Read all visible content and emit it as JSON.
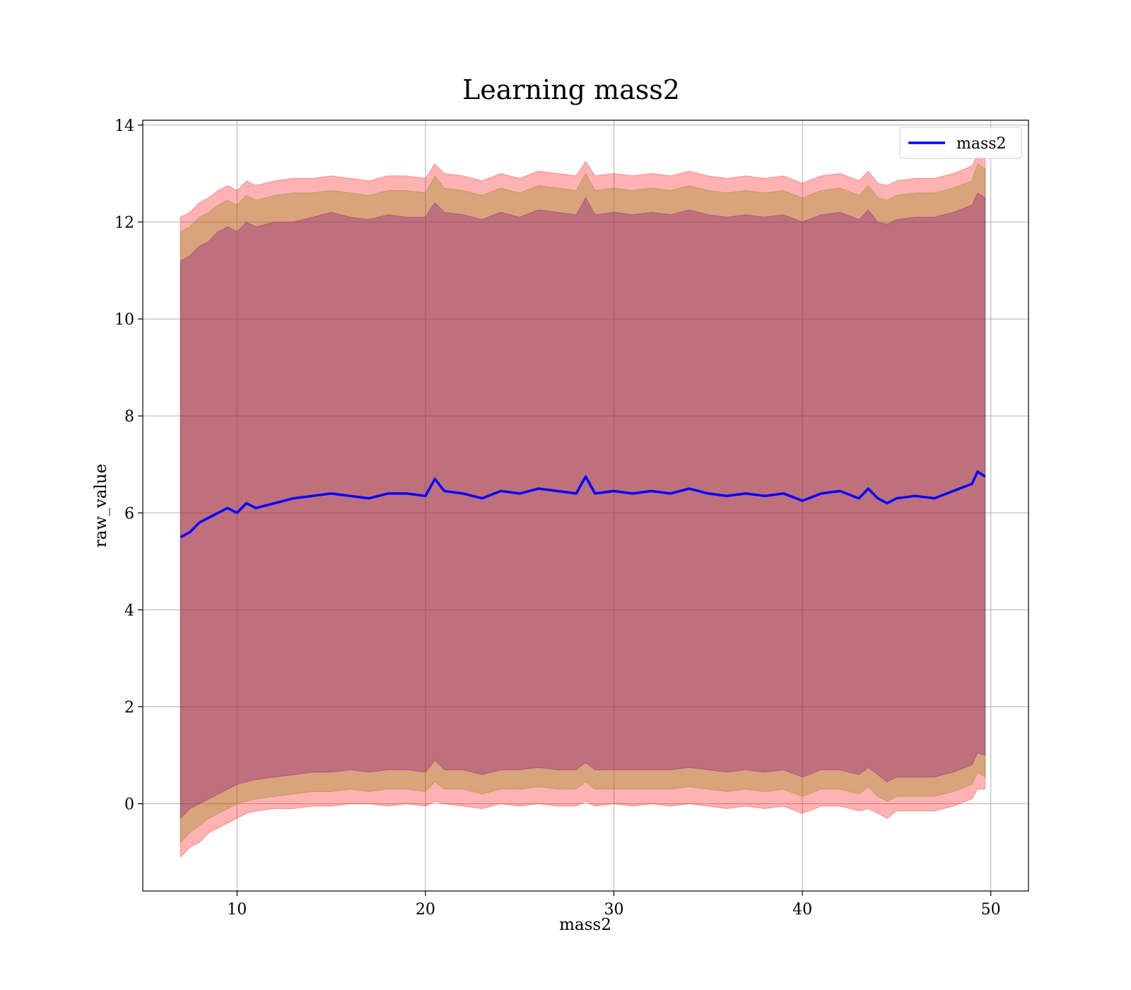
{
  "chart_data": {
    "type": "line",
    "title": "Learning mass2",
    "xlabel": "mass2",
    "ylabel": "raw_value",
    "xlim": [
      5,
      52
    ],
    "ylim": [
      -1.8,
      14.1
    ],
    "x_ticks": [
      10,
      20,
      30,
      40,
      50
    ],
    "y_ticks": [
      0,
      2,
      4,
      6,
      8,
      10,
      12,
      14
    ],
    "grid": true,
    "legend": {
      "placement": "top-right",
      "entries": [
        "mass2"
      ]
    },
    "colors": {
      "line": "#0000ff",
      "band_outer": "#ff0000",
      "band_middle": "#808000",
      "band_inner": "#800080"
    },
    "series": [
      {
        "name": "mass2",
        "x": [
          7.0,
          7.5,
          8.0,
          8.5,
          9.0,
          9.5,
          10.0,
          10.5,
          11.0,
          12.0,
          13.0,
          14.0,
          15.0,
          16.0,
          17.0,
          18.0,
          19.0,
          20.0,
          20.5,
          21.0,
          22.0,
          23.0,
          24.0,
          25.0,
          26.0,
          27.0,
          28.0,
          28.5,
          29.0,
          30.0,
          31.0,
          32.0,
          33.0,
          34.0,
          35.0,
          36.0,
          37.0,
          38.0,
          39.0,
          40.0,
          41.0,
          42.0,
          43.0,
          43.5,
          44.0,
          44.5,
          45.0,
          46.0,
          47.0,
          48.0,
          49.0,
          49.3,
          49.7
        ],
        "y": [
          5.5,
          5.6,
          5.8,
          5.9,
          6.0,
          6.1,
          6.0,
          6.2,
          6.1,
          6.2,
          6.3,
          6.35,
          6.4,
          6.35,
          6.3,
          6.4,
          6.4,
          6.35,
          6.7,
          6.45,
          6.4,
          6.3,
          6.45,
          6.4,
          6.5,
          6.45,
          6.4,
          6.75,
          6.4,
          6.45,
          6.4,
          6.45,
          6.4,
          6.5,
          6.4,
          6.35,
          6.4,
          6.35,
          6.4,
          6.25,
          6.4,
          6.45,
          6.3,
          6.5,
          6.3,
          6.2,
          6.3,
          6.35,
          6.3,
          6.45,
          6.6,
          6.85,
          6.75
        ],
        "bands": {
          "outer_lower": [
            -1.1,
            -0.9,
            -0.8,
            -0.6,
            -0.5,
            -0.4,
            -0.3,
            -0.2,
            -0.15,
            -0.1,
            -0.1,
            -0.05,
            -0.05,
            0.0,
            0.0,
            -0.05,
            0.0,
            -0.05,
            0.05,
            0.0,
            -0.05,
            -0.1,
            0.0,
            -0.05,
            0.0,
            -0.05,
            -0.05,
            0.05,
            -0.05,
            0.0,
            -0.05,
            0.0,
            -0.05,
            0.0,
            -0.05,
            -0.1,
            -0.05,
            -0.1,
            -0.05,
            -0.2,
            -0.05,
            -0.05,
            -0.15,
            -0.1,
            -0.2,
            -0.3,
            -0.15,
            -0.15,
            -0.15,
            -0.05,
            0.1,
            0.3,
            0.3
          ],
          "middle_lower": [
            -0.8,
            -0.6,
            -0.45,
            -0.3,
            -0.2,
            -0.1,
            0.0,
            0.05,
            0.1,
            0.15,
            0.2,
            0.25,
            0.25,
            0.3,
            0.25,
            0.3,
            0.3,
            0.25,
            0.45,
            0.3,
            0.3,
            0.2,
            0.3,
            0.3,
            0.35,
            0.3,
            0.3,
            0.45,
            0.3,
            0.3,
            0.3,
            0.3,
            0.3,
            0.35,
            0.3,
            0.25,
            0.3,
            0.25,
            0.3,
            0.15,
            0.3,
            0.3,
            0.2,
            0.35,
            0.15,
            0.05,
            0.15,
            0.15,
            0.15,
            0.25,
            0.4,
            0.65,
            0.55
          ],
          "inner_lower": [
            -0.3,
            -0.1,
            0.0,
            0.1,
            0.2,
            0.3,
            0.4,
            0.45,
            0.5,
            0.55,
            0.6,
            0.65,
            0.65,
            0.7,
            0.65,
            0.7,
            0.7,
            0.65,
            0.9,
            0.7,
            0.7,
            0.6,
            0.7,
            0.7,
            0.75,
            0.7,
            0.7,
            0.85,
            0.7,
            0.7,
            0.7,
            0.7,
            0.7,
            0.75,
            0.7,
            0.65,
            0.7,
            0.65,
            0.7,
            0.55,
            0.7,
            0.7,
            0.6,
            0.75,
            0.6,
            0.45,
            0.55,
            0.55,
            0.55,
            0.65,
            0.8,
            1.05,
            1.0
          ],
          "inner_upper": [
            11.2,
            11.3,
            11.5,
            11.6,
            11.8,
            11.9,
            11.8,
            12.0,
            11.9,
            12.0,
            12.0,
            12.1,
            12.2,
            12.1,
            12.05,
            12.15,
            12.1,
            12.1,
            12.4,
            12.2,
            12.15,
            12.05,
            12.2,
            12.1,
            12.25,
            12.2,
            12.15,
            12.5,
            12.15,
            12.2,
            12.15,
            12.2,
            12.15,
            12.25,
            12.15,
            12.1,
            12.15,
            12.1,
            12.15,
            12.0,
            12.15,
            12.2,
            12.05,
            12.25,
            12.0,
            11.95,
            12.05,
            12.1,
            12.1,
            12.2,
            12.35,
            12.6,
            12.5
          ],
          "middle_upper": [
            11.8,
            11.9,
            12.1,
            12.2,
            12.35,
            12.45,
            12.35,
            12.55,
            12.45,
            12.55,
            12.6,
            12.6,
            12.65,
            12.6,
            12.55,
            12.65,
            12.65,
            12.6,
            12.95,
            12.7,
            12.65,
            12.55,
            12.7,
            12.6,
            12.75,
            12.7,
            12.65,
            13.0,
            12.65,
            12.7,
            12.65,
            12.7,
            12.65,
            12.75,
            12.65,
            12.6,
            12.65,
            12.6,
            12.65,
            12.5,
            12.65,
            12.7,
            12.55,
            12.75,
            12.5,
            12.45,
            12.55,
            12.6,
            12.6,
            12.7,
            12.85,
            13.2,
            13.1
          ],
          "outer_upper": [
            12.1,
            12.2,
            12.4,
            12.5,
            12.65,
            12.75,
            12.65,
            12.85,
            12.75,
            12.85,
            12.9,
            12.9,
            12.95,
            12.9,
            12.85,
            12.95,
            12.95,
            12.9,
            13.2,
            13.0,
            12.95,
            12.85,
            13.0,
            12.9,
            13.05,
            13.0,
            12.95,
            13.25,
            12.95,
            13.0,
            12.95,
            13.0,
            12.95,
            13.05,
            12.95,
            12.9,
            12.95,
            12.9,
            12.95,
            12.8,
            12.95,
            13.0,
            12.85,
            13.05,
            12.8,
            12.75,
            12.85,
            12.9,
            12.9,
            13.0,
            13.15,
            13.4,
            13.3
          ]
        }
      }
    ]
  }
}
